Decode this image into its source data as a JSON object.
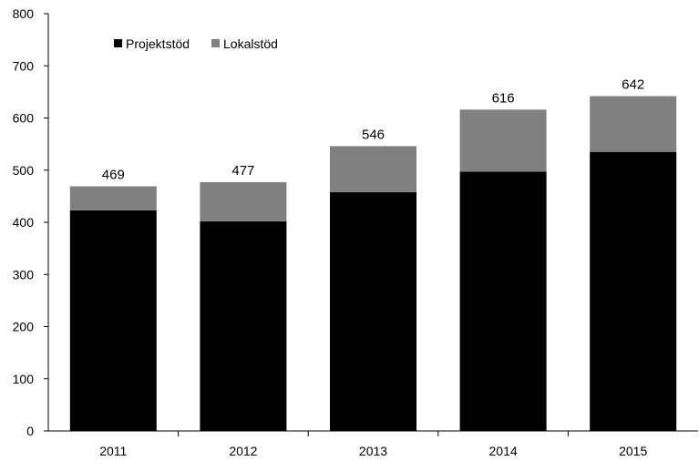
{
  "chart_data": {
    "type": "bar",
    "stacked": true,
    "categories": [
      "2011",
      "2012",
      "2013",
      "2014",
      "2015"
    ],
    "series": [
      {
        "name": "Projektstöd",
        "color": "#000000",
        "values": [
          423,
          402,
          458,
          497,
          535
        ]
      },
      {
        "name": "Lokalstöd",
        "color": "#808080",
        "values": [
          46,
          75,
          88,
          119,
          107
        ]
      }
    ],
    "totals": [
      469,
      477,
      546,
      616,
      642
    ],
    "ylim": [
      0,
      800
    ],
    "yticks": [
      0,
      100,
      200,
      300,
      400,
      500,
      600,
      700,
      800
    ],
    "title": "",
    "xlabel": "",
    "ylabel": "",
    "grid": false,
    "legend_position": "top-left"
  }
}
